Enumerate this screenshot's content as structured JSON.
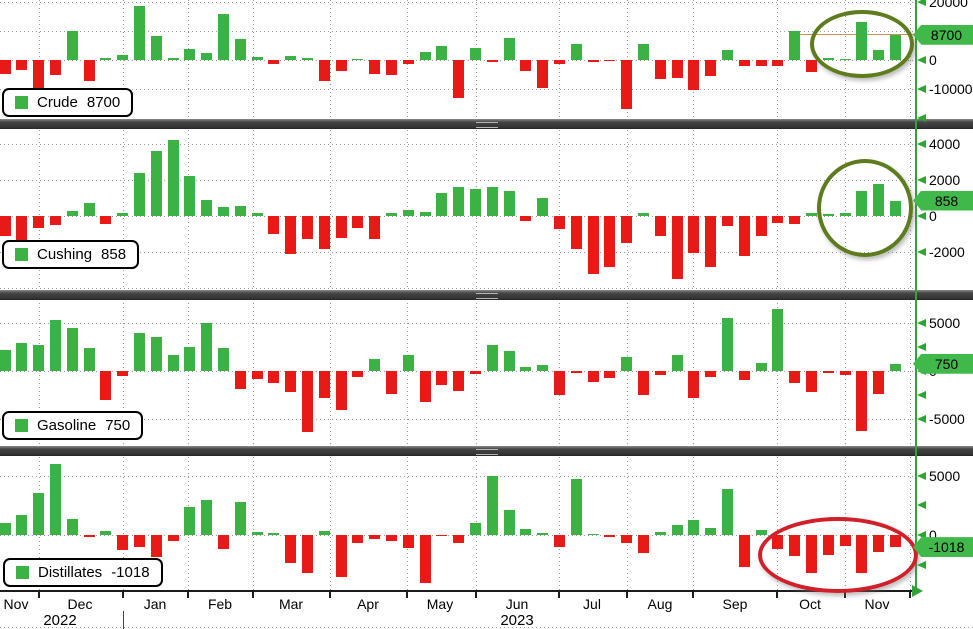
{
  "chart_data": {
    "type": "bar",
    "frequency": "weekly",
    "grid": true,
    "legend_position": "bottom-left",
    "x_axis": {
      "months": [
        "Nov",
        "Dec",
        "Jan",
        "Feb",
        "Mar",
        "Apr",
        "May",
        "Jun",
        "Jul",
        "Aug",
        "Sep",
        "Oct",
        "Nov"
      ],
      "years": [
        "2022",
        "2023"
      ]
    },
    "panels": [
      {
        "name": "Crude",
        "legend_label": "Crude",
        "last_value": 8700,
        "last_value_label": "8700",
        "ylim": [
          -20355,
          20700
        ],
        "yticks": [
          {
            "value": 20000,
            "label": "20000"
          },
          {
            "value": 0,
            "label": "0"
          },
          {
            "value": -10000,
            "label": "-10000"
          },
          {
            "value": -20000,
            "label": ""
          }
        ],
        "gridlines": [
          20000,
          10000,
          0,
          -10000
        ],
        "values": [
          -4700,
          -3400,
          -10000,
          -5200,
          10000,
          -7200,
          700,
          1700,
          18600,
          8300,
          700,
          3800,
          2400,
          15900,
          7200,
          1000,
          -1400,
          1400,
          800,
          -7200,
          -3800,
          500,
          -4900,
          -5200,
          -1500,
          2900,
          4800,
          -13000,
          4300,
          -600,
          7500,
          -3800,
          -9500,
          -1500,
          5600,
          -700,
          -400,
          -17000,
          5700,
          -6700,
          -6300,
          -10500,
          -5500,
          3400,
          -2000,
          -2000,
          -2000,
          10000,
          -4000,
          600,
          300,
          13200,
          3300,
          8700
        ]
      },
      {
        "name": "Cushing",
        "legend_label": "Cushing",
        "last_value": 858,
        "last_value_label": "858",
        "ylim": [
          -4107,
          4773
        ],
        "yticks": [
          {
            "value": 4000,
            "label": "4000"
          },
          {
            "value": 2000,
            "label": "2000"
          },
          {
            "value": 0,
            "label": "0"
          },
          {
            "value": -2000,
            "label": "-2000"
          }
        ],
        "gridlines": [
          4000,
          2000,
          0,
          -2000,
          -4000
        ],
        "values": [
          -1100,
          -1900,
          -650,
          -520,
          280,
          700,
          -450,
          150,
          2370,
          3600,
          4200,
          2200,
          890,
          500,
          550,
          150,
          -1000,
          -2100,
          -1300,
          -1850,
          -1200,
          -650,
          -1300,
          150,
          330,
          220,
          1300,
          1600,
          1500,
          1600,
          1400,
          -280,
          1000,
          -700,
          -1850,
          -3200,
          -2850,
          -1480,
          150,
          -1100,
          -3500,
          -2050,
          -2800,
          -550,
          -2200,
          -1100,
          -370,
          -460,
          150,
          90,
          150,
          1390,
          1800,
          858
        ]
      },
      {
        "name": "Gasoline",
        "legend_label": "Gasoline",
        "last_value": 750,
        "last_value_label": "750",
        "ylim": [
          -7592,
          7488
        ],
        "yticks": [
          {
            "value": 5000,
            "label": "5000"
          },
          {
            "value": 2500,
            "label": ""
          },
          {
            "value": 0,
            "label": "0"
          },
          {
            "value": -2500,
            "label": ""
          },
          {
            "value": -5000,
            "label": "-5000"
          }
        ],
        "gridlines": [
          7500,
          5000,
          0,
          -5000
        ],
        "values": [
          2200,
          2900,
          2700,
          5300,
          4500,
          2400,
          -3000,
          -500,
          4000,
          3500,
          1700,
          2500,
          5000,
          2350,
          -1900,
          -830,
          -1200,
          -2150,
          -6300,
          -2800,
          -4000,
          -600,
          1250,
          -2400,
          1650,
          -3200,
          -1400,
          -2100,
          -350,
          2700,
          2100,
          450,
          620,
          -2500,
          -170,
          -1180,
          -760,
          1500,
          -2500,
          -400,
          1650,
          -2800,
          -590,
          5500,
          -930,
          800,
          6450,
          -1280,
          -2150,
          -240,
          -400,
          -6250,
          -2400,
          750
        ]
      },
      {
        "name": "Distillates",
        "legend_label": "Distillates",
        "last_value": -1018,
        "last_value_label": "-1018",
        "ylim": [
          -4704,
          6552
        ],
        "yticks": [
          {
            "value": 5000,
            "label": "5000"
          },
          {
            "value": 2500,
            "label": ""
          },
          {
            "value": 0,
            "label": "0"
          },
          {
            "value": -2500,
            "label": ""
          }
        ],
        "gridlines": [
          5000,
          0
        ],
        "values": [
          1000,
          1700,
          3550,
          6000,
          1350,
          -200,
          340,
          -1260,
          -980,
          -1880,
          -480,
          2320,
          2940,
          -1200,
          2740,
          280,
          200,
          -2380,
          -3160,
          340,
          -3500,
          -700,
          -360,
          -480,
          -1120,
          -4060,
          -100,
          -640,
          1040,
          4950,
          2100,
          480,
          200,
          -1030,
          4670,
          80,
          -200,
          -700,
          -1540,
          280,
          880,
          1260,
          560,
          3840,
          -2700,
          420,
          -1200,
          -1760,
          -3160,
          -1680,
          -920,
          -3220,
          -1400,
          -1018
        ]
      }
    ]
  },
  "annotations": [
    {
      "panel": "Crude",
      "shape": "ellipse",
      "color": "#5e7b1e"
    },
    {
      "panel": "Cushing",
      "shape": "ellipse",
      "color": "#5e7b1e"
    },
    {
      "panel": "Distillates",
      "shape": "ellipse",
      "color": "#d0202a"
    }
  ],
  "colors": {
    "bar_positive": "#3cb244",
    "bar_negative": "#e81a17",
    "axis_green": "#2fa338",
    "tag_bg": "#41b84a",
    "grid": "#9b9b9b",
    "divider": "#3b3b3b",
    "last_line": "#c79454",
    "text": "#000000"
  }
}
